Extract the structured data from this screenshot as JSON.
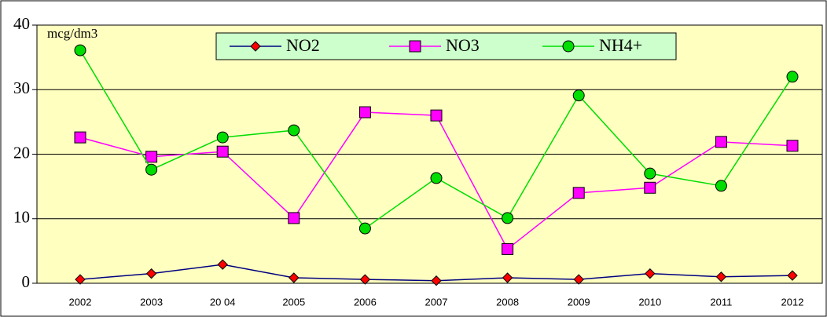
{
  "chart_data": {
    "type": "line",
    "y_label": "mcg/dm3",
    "categories": [
      "2002",
      "2003",
      "20 04",
      "2005",
      "2006",
      "2007",
      "2008",
      "2009",
      "2010",
      "2011",
      "2012"
    ],
    "series": [
      {
        "name": "NO2",
        "color": "#000080",
        "marker": "diamond",
        "marker_color": "#ff0000",
        "values": [
          0.6,
          1.5,
          2.9,
          0.85,
          0.6,
          0.4,
          0.85,
          0.6,
          1.5,
          1.0,
          1.2
        ]
      },
      {
        "name": "NO3",
        "color": "#ff00ff",
        "marker": "square",
        "marker_color": "#ff00ff",
        "values": [
          22.6,
          19.6,
          20.4,
          10.1,
          26.5,
          26.0,
          5.3,
          14.0,
          14.8,
          21.9,
          21.3
        ]
      },
      {
        "name": "NH4+",
        "color": "#00dd00",
        "marker": "circle",
        "marker_color": "#00dd00",
        "values": [
          36.1,
          17.6,
          22.6,
          23.7,
          8.5,
          16.3,
          10.1,
          29.1,
          17.0,
          15.1,
          32.0
        ]
      }
    ],
    "ylim": [
      0,
      40
    ],
    "yticks": [
      0,
      10,
      20,
      30,
      40
    ],
    "grid": true
  }
}
